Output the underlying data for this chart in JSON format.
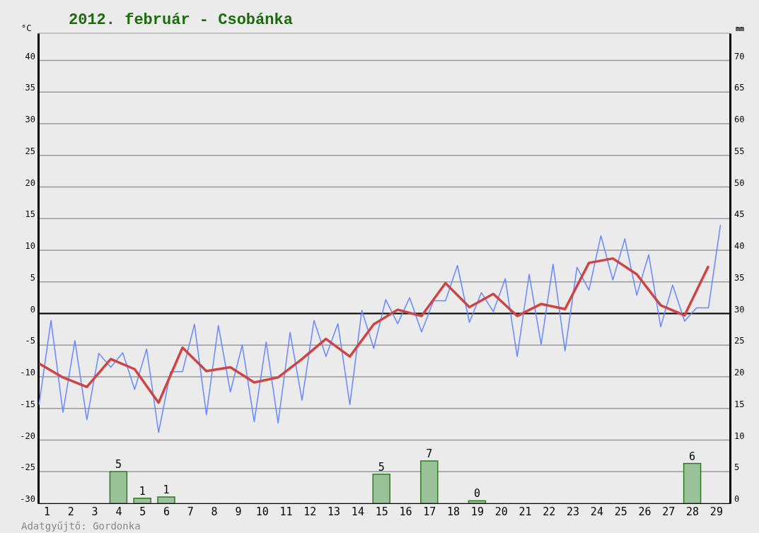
{
  "chart_data": {
    "type": "line",
    "title": "2012. február - Csobánka",
    "ylabel": "°C",
    "y2label": "mm",
    "annotations": [
      "Adatgyűjtő: Gordonka"
    ],
    "xlim": [
      0.645,
      29.58
    ],
    "xticks": [
      1,
      2,
      3,
      4,
      5,
      6,
      7,
      8,
      9,
      10,
      11,
      12,
      13,
      14,
      15,
      16,
      17,
      18,
      19,
      20,
      21,
      22,
      23,
      24,
      25,
      26,
      27,
      28,
      29
    ],
    "ylim": [
      -30,
      44.3
    ],
    "yticks": [
      -30,
      -25,
      -20,
      -15,
      -10,
      -5,
      0,
      5,
      10,
      15,
      20,
      25,
      30,
      35,
      40
    ],
    "y2lim": [
      0,
      74.3
    ],
    "y2ticks": [
      0,
      5,
      10,
      15,
      20,
      25,
      30,
      35,
      40,
      45,
      50,
      55,
      60,
      65,
      70
    ],
    "grid": "y",
    "marker": "none",
    "line_style": "solid",
    "ref_lines": [
      {
        "axis": "y",
        "value": 0,
        "color": "#000000"
      }
    ],
    "series": [
      {
        "type": "bar",
        "axis": "y2",
        "color": "#99c299",
        "x": [
          4,
          5,
          6,
          15,
          17,
          19,
          28
        ],
        "values": [
          5.0,
          0.8,
          1.0,
          4.6,
          6.7,
          0.4,
          6.3
        ],
        "value_labels": [
          "5",
          "1",
          "1",
          "5",
          "7",
          "0",
          "6"
        ]
      },
      {
        "color": "#6688ff",
        "x": [
          0.68,
          1.18,
          1.68,
          2.18,
          2.68,
          3.18,
          3.68,
          4.18,
          4.68,
          5.18,
          5.68,
          6.18,
          6.68,
          7.18,
          7.68,
          8.18,
          8.68,
          9.18,
          9.68,
          10.18,
          10.68,
          11.18,
          11.68,
          12.18,
          12.68,
          13.18,
          13.68,
          14.18,
          14.68,
          15.18,
          15.68,
          16.18,
          16.68,
          17.18,
          17.68,
          18.18,
          18.68,
          19.18,
          19.68,
          20.18,
          20.68,
          21.18,
          21.68,
          22.18,
          22.68,
          23.18,
          23.68,
          24.18,
          24.68,
          25.18,
          25.68,
          26.18,
          26.68,
          27.18,
          27.68,
          28.18,
          28.68,
          29.18
        ],
        "values": [
          -14.4,
          -1.1,
          -15.6,
          -4.3,
          -16.8,
          -6.3,
          -8.5,
          -6.2,
          -12.0,
          -5.6,
          -18.8,
          -9.2,
          -9.2,
          -1.7,
          -16.0,
          -1.9,
          -12.4,
          -5.0,
          -17.1,
          -4.5,
          -17.3,
          -3.0,
          -13.7,
          -1.1,
          -6.8,
          -1.6,
          -14.4,
          0.5,
          -5.5,
          2.2,
          -1.6,
          2.5,
          -2.9,
          2.0,
          2.0,
          7.6,
          -1.4,
          3.3,
          0.3,
          5.5,
          -6.8,
          6.2,
          -4.9,
          7.8,
          -5.9,
          7.3,
          3.7,
          12.3,
          5.3,
          11.8,
          2.9,
          9.3,
          -2.1,
          4.5,
          -1.2,
          0.9,
          0.9,
          14.0
        ]
      },
      {
        "color": "#cc4444",
        "x": [
          0.68,
          1.68,
          2.68,
          3.68,
          4.68,
          5.68,
          6.68,
          7.68,
          8.68,
          9.68,
          10.68,
          11.68,
          12.68,
          13.68,
          14.68,
          15.68,
          16.68,
          17.68,
          18.68,
          19.68,
          20.68,
          21.68,
          22.68,
          23.68,
          24.68,
          25.68,
          26.68,
          27.68,
          28.68
        ],
        "values": [
          -7.9,
          -10.1,
          -11.6,
          -7.2,
          -8.8,
          -14.1,
          -5.4,
          -9.1,
          -8.5,
          -10.9,
          -10.1,
          -7.2,
          -4.0,
          -6.8,
          -1.7,
          0.6,
          -0.4,
          4.8,
          1.0,
          3.1,
          -0.4,
          1.5,
          0.7,
          8.0,
          8.7,
          6.2,
          1.3,
          -0.3,
          7.5
        ]
      }
    ]
  }
}
